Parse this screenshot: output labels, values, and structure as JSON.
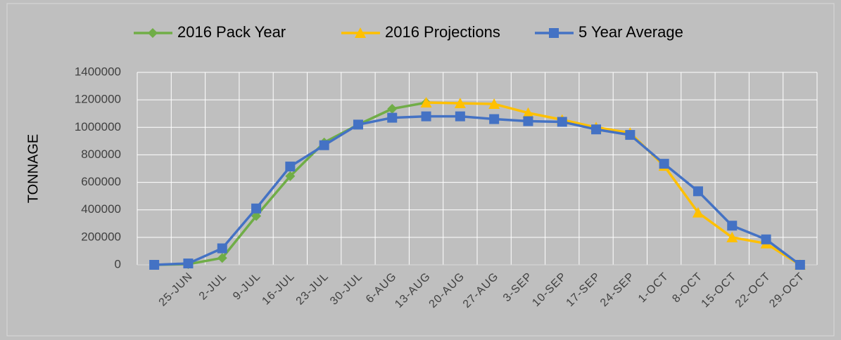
{
  "chart_data": {
    "type": "line",
    "ylabel": "TONNAGE",
    "categories": [
      null,
      "25-JUN",
      "2-JUL",
      "9-JUL",
      "16-JUL",
      "23-JUL",
      "30-JUL",
      "6-AUG",
      "13-AUG",
      "20-AUG",
      "27-AUG",
      "3-SEP",
      "10-SEP",
      "17-SEP",
      "24-SEP",
      "1-OCT",
      "8-OCT",
      "15-OCT",
      "22-OCT",
      "29-OCT"
    ],
    "series": [
      {
        "name": "2016 Pack Year",
        "color": "#70ad47",
        "marker": "diamond",
        "values": [
          0,
          5000,
          50000,
          355000,
          645000,
          890000,
          1020000,
          1135000,
          1180000,
          null,
          null,
          null,
          null,
          null,
          null,
          null,
          null,
          null,
          null,
          null
        ]
      },
      {
        "name": "2016 Projections",
        "color": "#ffc000",
        "marker": "triangle",
        "values": [
          null,
          null,
          null,
          null,
          null,
          null,
          null,
          null,
          1180000,
          1175000,
          1170000,
          1105000,
          1055000,
          1000000,
          960000,
          720000,
          380000,
          200000,
          155000,
          0
        ]
      },
      {
        "name": "5 Year Average",
        "color": "#4472c4",
        "marker": "square",
        "values": [
          0,
          10000,
          120000,
          410000,
          715000,
          870000,
          1020000,
          1070000,
          1080000,
          1080000,
          1060000,
          1045000,
          1040000,
          985000,
          945000,
          735000,
          535000,
          285000,
          185000,
          0
        ]
      }
    ],
    "ylim": [
      0,
      1400000
    ],
    "yticks": [
      0,
      200000,
      400000,
      600000,
      800000,
      1000000,
      1200000,
      1400000
    ],
    "grid": true,
    "legend": "top"
  }
}
